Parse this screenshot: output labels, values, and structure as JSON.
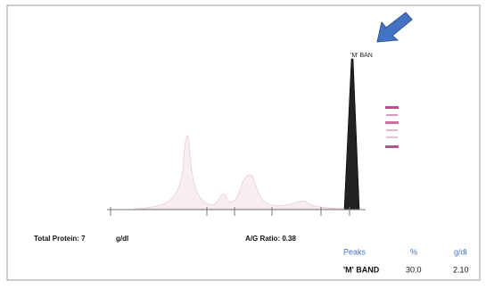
{
  "trace": {
    "peak_label": "'M' BAN"
  },
  "summary": {
    "total_protein_label": "Total Protein: 7",
    "total_protein_unit": "g/dl",
    "ag_ratio": "A/G Ratio: 0.38"
  },
  "table": {
    "header": [
      "Peaks",
      "%",
      "g/dl"
    ],
    "rows": [
      [
        "'M' BAND",
        "30.0",
        "2.10"
      ]
    ]
  }
}
